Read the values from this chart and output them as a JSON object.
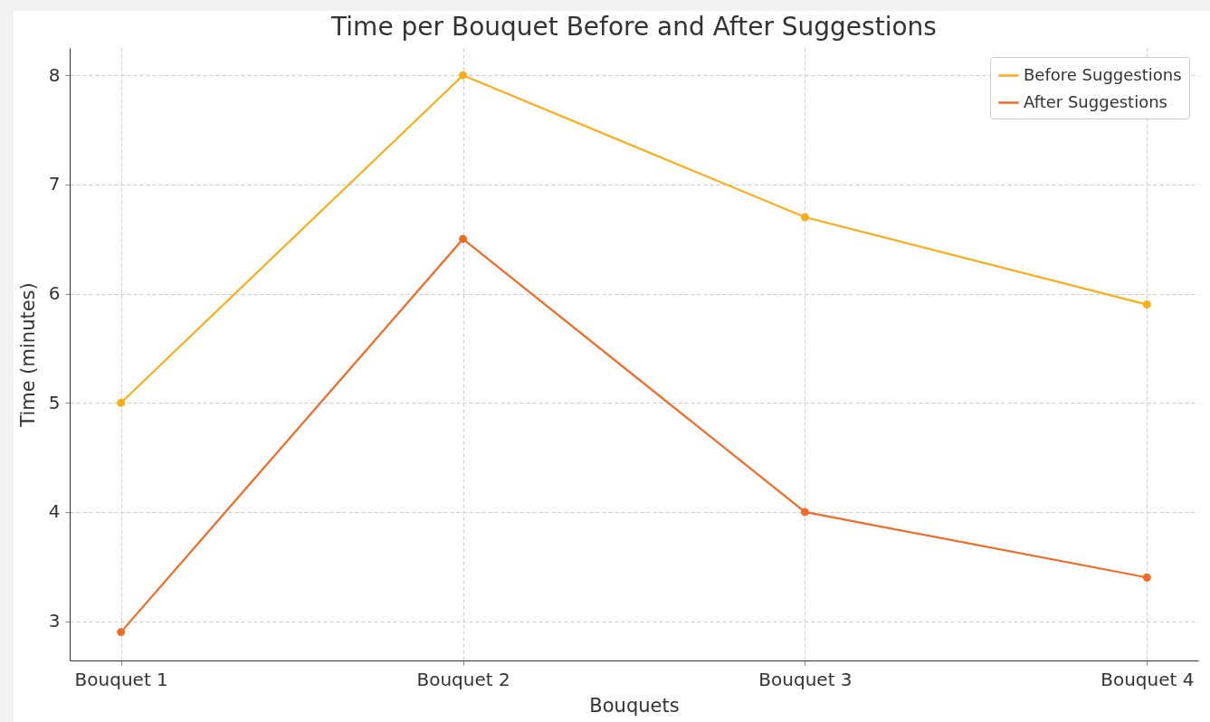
{
  "chart_data": {
    "type": "line",
    "title": "Time per Bouquet Before and After Suggestions",
    "xlabel": "Bouquets",
    "ylabel": "Time (minutes)",
    "categories": [
      "Bouquet 1",
      "Bouquet 2",
      "Bouquet 3",
      "Bouquet 4"
    ],
    "series": [
      {
        "name": "Before Suggestions",
        "color": "#fbae17",
        "values": [
          5,
          8,
          6.7,
          5.9
        ]
      },
      {
        "name": "After Suggestions",
        "color": "#f26b26",
        "values": [
          2.9,
          6.5,
          4.0,
          3.4
        ]
      }
    ],
    "ylim": [
      2.64,
      8.25
    ],
    "yticks": [
      3,
      4,
      5,
      6,
      7,
      8
    ],
    "grid": true,
    "legend": "top right",
    "marker": "circle",
    "line_style": "solid"
  }
}
